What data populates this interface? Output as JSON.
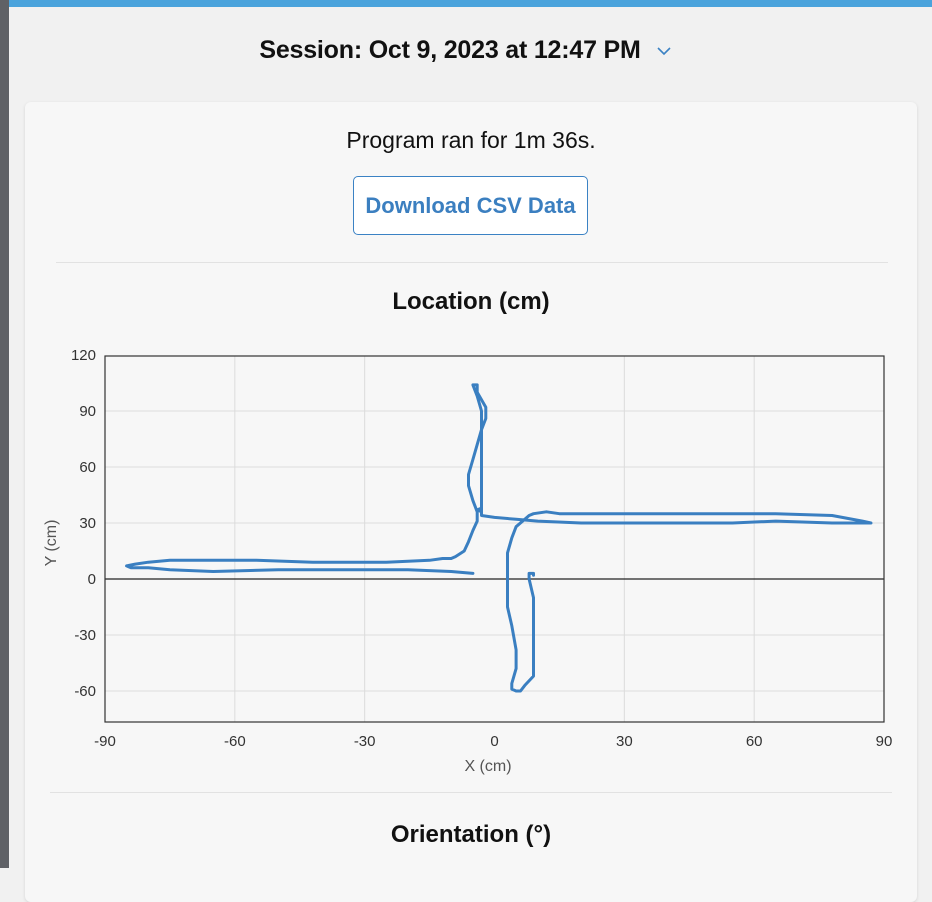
{
  "session": {
    "label": "Session: Oct 9, 2023 at 12:47 PM",
    "icon": "chevron-down-icon"
  },
  "summary": {
    "runtime_text": "Program ran for 1m 36s."
  },
  "download_button": {
    "label": "Download CSV Data"
  },
  "next_section": {
    "title": "Orientation (°)"
  },
  "colors": {
    "accent": "#3b82c4",
    "line": "#3a7fc1",
    "top_bar": "#4aa3dc"
  },
  "chart_data": {
    "type": "line",
    "title": "Location (cm)",
    "xlabel": "X (cm)",
    "ylabel": "Y (cm)",
    "xlim": [
      -90,
      90
    ],
    "ylim": [
      -70,
      120
    ],
    "xticks": [
      -90,
      -60,
      -30,
      0,
      30,
      60,
      90
    ],
    "yticks": [
      120,
      90,
      60,
      30,
      0,
      -30,
      -60
    ],
    "grid": true,
    "series": [
      {
        "color": "#3a7fc1",
        "points": [
          [
            -5,
            3
          ],
          [
            -10,
            4
          ],
          [
            -20,
            5
          ],
          [
            -35,
            5
          ],
          [
            -50,
            5
          ],
          [
            -65,
            4
          ],
          [
            -75,
            5
          ],
          [
            -80,
            6
          ],
          [
            -84,
            6
          ],
          [
            -85,
            7
          ],
          [
            -83,
            8
          ],
          [
            -80,
            9
          ],
          [
            -75,
            10
          ],
          [
            -55,
            10
          ],
          [
            -42,
            9
          ],
          [
            -25,
            9
          ],
          [
            -15,
            10
          ],
          [
            -12,
            11
          ],
          [
            -10,
            11
          ],
          [
            -9,
            12
          ],
          [
            -7,
            15
          ],
          [
            -6,
            20
          ],
          [
            -5,
            26
          ],
          [
            -4,
            31
          ],
          [
            -4,
            36
          ],
          [
            -5,
            42
          ],
          [
            -6,
            50
          ],
          [
            -6,
            56
          ],
          [
            -5,
            64
          ],
          [
            -4,
            72
          ],
          [
            -3,
            80
          ],
          [
            -2,
            86
          ],
          [
            -2,
            92
          ],
          [
            -3,
            96
          ],
          [
            -4,
            100
          ],
          [
            -4,
            104
          ],
          [
            -5,
            104
          ],
          [
            -4,
            98
          ],
          [
            -3,
            90
          ],
          [
            -3,
            80
          ],
          [
            -3,
            70
          ],
          [
            -3,
            60
          ],
          [
            -3,
            50
          ],
          [
            -3,
            40
          ],
          [
            -3,
            36
          ],
          [
            -4,
            37
          ],
          [
            -3,
            38
          ],
          [
            -3,
            34
          ],
          [
            0,
            33
          ],
          [
            5,
            32
          ],
          [
            10,
            31
          ],
          [
            20,
            30
          ],
          [
            40,
            30
          ],
          [
            55,
            30
          ],
          [
            65,
            31
          ],
          [
            78,
            30
          ],
          [
            87,
            30
          ],
          [
            85,
            31
          ],
          [
            78,
            34
          ],
          [
            65,
            35
          ],
          [
            55,
            35
          ],
          [
            40,
            35
          ],
          [
            25,
            35
          ],
          [
            15,
            35
          ],
          [
            12,
            36
          ],
          [
            9,
            35
          ],
          [
            8,
            34
          ],
          [
            7,
            32
          ],
          [
            5,
            28
          ],
          [
            4,
            22
          ],
          [
            3,
            14
          ],
          [
            3,
            5
          ],
          [
            3,
            -5
          ],
          [
            3,
            -15
          ],
          [
            4,
            -25
          ],
          [
            5,
            -38
          ],
          [
            5,
            -48
          ],
          [
            4,
            -56
          ],
          [
            4,
            -59
          ],
          [
            5,
            -60
          ],
          [
            6,
            -60
          ],
          [
            7,
            -57
          ],
          [
            9,
            -52
          ],
          [
            9,
            -40
          ],
          [
            9,
            -25
          ],
          [
            9,
            -10
          ],
          [
            8,
            0
          ],
          [
            8,
            3
          ],
          [
            9,
            3
          ],
          [
            9,
            2
          ]
        ]
      }
    ]
  }
}
